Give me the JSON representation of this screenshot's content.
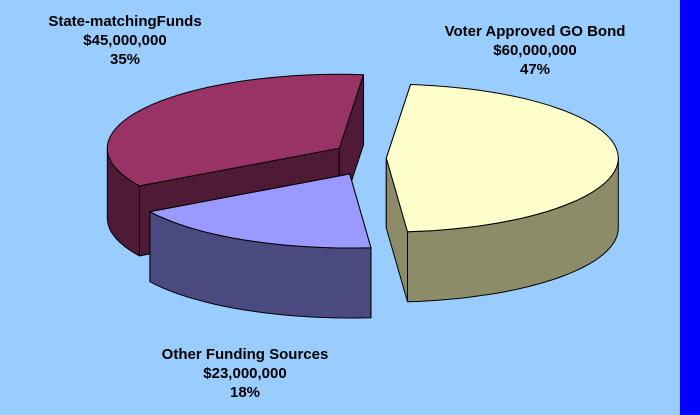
{
  "chart_data": {
    "type": "pie",
    "title": "",
    "slices": [
      {
        "label": "Voter Approved GO Bond",
        "amount": "$60,000,000",
        "percent": "47%",
        "value": 60000000,
        "top_color": "#ffffcc",
        "side_color": "#8c8c68"
      },
      {
        "label": "Other Funding Sources",
        "amount": "$23,000,000",
        "percent": "18%",
        "value": 23000000,
        "top_color": "#9999ff",
        "side_color": "#4a4a80"
      },
      {
        "label": "State-matchingFunds",
        "amount": "$45,000,000",
        "percent": "35%",
        "value": 45000000,
        "top_color": "#993366",
        "side_color": "#4f1a35"
      }
    ]
  }
}
